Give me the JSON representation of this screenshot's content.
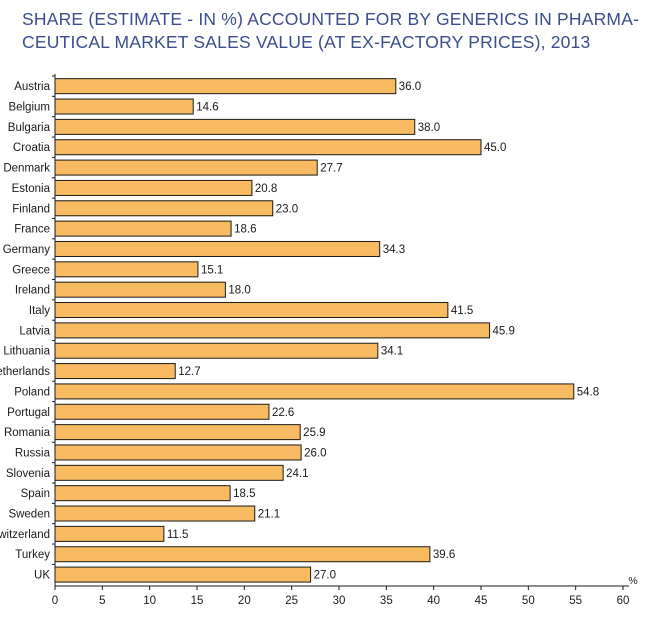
{
  "chart_data": {
    "type": "bar",
    "orientation": "horizontal",
    "title_lines": [
      "SHARE (ESTIMATE - IN %) ACCOUNTED FOR BY GENERICS IN PHARMA-",
      "CEUTICAL MARKET SALES VALUE (AT EX-FACTORY PRICES), 2013"
    ],
    "categories": [
      "Austria",
      "Belgium",
      "Bulgaria",
      "Croatia",
      "Denmark",
      "Estonia",
      "Finland",
      "France",
      "Germany",
      "Greece",
      "Ireland",
      "Italy",
      "Latvia",
      "Lithuania",
      "Netherlands",
      "Poland",
      "Portugal",
      "Romania",
      "Russia",
      "Slovenia",
      "Spain",
      "Sweden",
      "Switzerland",
      "Turkey",
      "UK"
    ],
    "values": [
      36.0,
      14.6,
      38.0,
      45.0,
      27.7,
      20.8,
      23.0,
      18.6,
      34.3,
      15.1,
      18.0,
      41.5,
      45.9,
      34.1,
      12.7,
      54.8,
      22.6,
      25.9,
      26.0,
      24.1,
      18.5,
      21.1,
      11.5,
      39.6,
      27.0
    ],
    "value_labels": [
      "36.0",
      "14.6",
      "38.0",
      "45.0",
      "27.7",
      "20.8",
      "23.0",
      "18.6",
      "34.3",
      "15.1",
      "18.0",
      "41.5",
      "45.9",
      "34.1",
      "12.7",
      "54.8",
      "22.6",
      "25.9",
      "26.0",
      "24.1",
      "18.5",
      "21.1",
      "11.5",
      "39.6",
      "27.0"
    ],
    "xlim": [
      0,
      60
    ],
    "xticks": [
      0,
      5,
      10,
      15,
      20,
      25,
      30,
      35,
      40,
      45,
      50,
      55,
      60
    ],
    "xtick_labels": [
      "0",
      "5",
      "10",
      "15",
      "20",
      "25",
      "30",
      "35",
      "40",
      "45",
      "50",
      "55",
      "60"
    ],
    "x_unit_label": "%",
    "grid": false,
    "colors": {
      "bar_fill": "#f9bb62",
      "bar_stroke": "#1a1a1a",
      "title": "#3a4d8c",
      "text": "#1a1a1a"
    }
  }
}
